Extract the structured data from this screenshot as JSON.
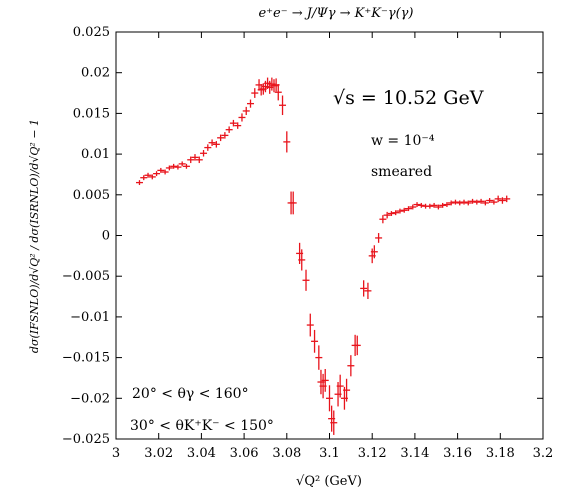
{
  "chart_data": {
    "type": "scatter",
    "title": "e⁺e⁻ → J/Ψγ → K⁺K⁻γ(γ)",
    "xlabel": "√Q² (GeV)",
    "ylabel": "dσ(IFSNLO)/d√Q² / dσ(ISRNLO)/d√Q² − 1",
    "xlim": [
      3.0,
      3.2
    ],
    "ylim": [
      -0.025,
      0.025
    ],
    "x_ticks": [
      "3",
      "3.02",
      "3.04",
      "3.06",
      "3.08",
      "3.1",
      "3.12",
      "3.14",
      "3.16",
      "3.18",
      "3.2"
    ],
    "y_ticks": [
      "0.025",
      "0.02",
      "0.015",
      "0.01",
      "0.005",
      "0",
      "−0.005",
      "−0.01",
      "−0.015",
      "−0.02",
      "−0.025"
    ],
    "annotations": {
      "energy": "√s = 10.52 GeV",
      "weight": "w = 10⁻⁴",
      "smeared": "smeared",
      "theta_gamma": "20° < θγ < 160°",
      "theta_kk": "30° < θK⁺K⁻ < 150°"
    },
    "marker_color": "#e8141c",
    "grid": false,
    "series": [
      {
        "points": [
          [
            3.011,
            0.0065,
            0.0003
          ],
          [
            3.013,
            0.0071,
            0.0003
          ],
          [
            3.015,
            0.0074,
            0.0003
          ],
          [
            3.017,
            0.0072,
            0.0003
          ],
          [
            3.019,
            0.0076,
            0.0003
          ],
          [
            3.021,
            0.008,
            0.0003
          ],
          [
            3.023,
            0.0078,
            0.0003
          ],
          [
            3.025,
            0.0083,
            0.0003
          ],
          [
            3.027,
            0.0085,
            0.0003
          ],
          [
            3.029,
            0.0084,
            0.0003
          ],
          [
            3.031,
            0.0088,
            0.0003
          ],
          [
            3.033,
            0.0085,
            0.0003
          ],
          [
            3.035,
            0.0093,
            0.0004
          ],
          [
            3.037,
            0.0096,
            0.0004
          ],
          [
            3.039,
            0.0093,
            0.0004
          ],
          [
            3.041,
            0.0101,
            0.0004
          ],
          [
            3.043,
            0.0108,
            0.0004
          ],
          [
            3.045,
            0.0114,
            0.0004
          ],
          [
            3.047,
            0.0112,
            0.0004
          ],
          [
            3.049,
            0.012,
            0.0004
          ],
          [
            3.051,
            0.0123,
            0.0004
          ],
          [
            3.053,
            0.013,
            0.0004
          ],
          [
            3.055,
            0.0138,
            0.0004
          ],
          [
            3.057,
            0.0135,
            0.0004
          ],
          [
            3.059,
            0.0145,
            0.0005
          ],
          [
            3.061,
            0.0153,
            0.0005
          ],
          [
            3.063,
            0.0162,
            0.0005
          ],
          [
            3.065,
            0.0175,
            0.0006
          ],
          [
            3.067,
            0.0185,
            0.0007
          ],
          [
            3.068,
            0.0179,
            0.0007
          ],
          [
            3.069,
            0.018,
            0.0007
          ],
          [
            3.07,
            0.0183,
            0.0007
          ],
          [
            3.071,
            0.0187,
            0.0007
          ],
          [
            3.072,
            0.0182,
            0.0008
          ],
          [
            3.073,
            0.0186,
            0.0008
          ],
          [
            3.074,
            0.0184,
            0.0008
          ],
          [
            3.075,
            0.0185,
            0.0008
          ],
          [
            3.076,
            0.0176,
            0.001
          ],
          [
            3.078,
            0.016,
            0.0012
          ],
          [
            3.08,
            0.0115,
            0.0013
          ],
          [
            3.082,
            0.004,
            0.0014
          ],
          [
            3.083,
            0.004,
            0.0014
          ],
          [
            3.086,
            -0.0022,
            0.0013
          ],
          [
            3.087,
            -0.003,
            0.0013
          ],
          [
            3.089,
            -0.0055,
            0.0013
          ],
          [
            3.091,
            -0.011,
            0.0014
          ],
          [
            3.093,
            -0.013,
            0.0014
          ],
          [
            3.095,
            -0.015,
            0.0015
          ],
          [
            3.096,
            -0.018,
            0.0015
          ],
          [
            3.097,
            -0.0185,
            0.0015
          ],
          [
            3.098,
            -0.0178,
            0.0014
          ],
          [
            3.1,
            -0.02,
            0.0016
          ],
          [
            3.101,
            -0.0225,
            0.0016
          ],
          [
            3.102,
            -0.023,
            0.0015
          ],
          [
            3.104,
            -0.0195,
            0.0015
          ],
          [
            3.105,
            -0.0185,
            0.0014
          ],
          [
            3.107,
            -0.02,
            0.0014
          ],
          [
            3.108,
            -0.019,
            0.0014
          ],
          [
            3.11,
            -0.016,
            0.0013
          ],
          [
            3.112,
            -0.0135,
            0.0013
          ],
          [
            3.113,
            -0.0135,
            0.0012
          ],
          [
            3.116,
            -0.0065,
            0.001
          ],
          [
            3.118,
            -0.0068,
            0.001
          ],
          [
            3.12,
            -0.0025,
            0.0009
          ],
          [
            3.121,
            -0.002,
            0.0008
          ],
          [
            3.123,
            -0.0003,
            0.0006
          ],
          [
            3.125,
            0.002,
            0.0005
          ],
          [
            3.127,
            0.0025,
            0.0004
          ],
          [
            3.129,
            0.0027,
            0.0003
          ],
          [
            3.131,
            0.0028,
            0.0003
          ],
          [
            3.133,
            0.003,
            0.0003
          ],
          [
            3.135,
            0.0031,
            0.0003
          ],
          [
            3.137,
            0.0033,
            0.0003
          ],
          [
            3.139,
            0.0035,
            0.0003
          ],
          [
            3.141,
            0.0038,
            0.0003
          ],
          [
            3.143,
            0.0037,
            0.0003
          ],
          [
            3.145,
            0.0036,
            0.0003
          ],
          [
            3.147,
            0.0036,
            0.0003
          ],
          [
            3.149,
            0.0037,
            0.0003
          ],
          [
            3.151,
            0.0035,
            0.0003
          ],
          [
            3.153,
            0.0037,
            0.0003
          ],
          [
            3.155,
            0.0038,
            0.0003
          ],
          [
            3.157,
            0.004,
            0.0003
          ],
          [
            3.159,
            0.0041,
            0.0003
          ],
          [
            3.161,
            0.004,
            0.0003
          ],
          [
            3.163,
            0.0041,
            0.0003
          ],
          [
            3.165,
            0.004,
            0.0003
          ],
          [
            3.167,
            0.0042,
            0.0003
          ],
          [
            3.169,
            0.0041,
            0.0003
          ],
          [
            3.171,
            0.0042,
            0.0003
          ],
          [
            3.173,
            0.004,
            0.0003
          ],
          [
            3.175,
            0.0043,
            0.0003
          ],
          [
            3.177,
            0.0041,
            0.0003
          ],
          [
            3.179,
            0.0045,
            0.0004
          ],
          [
            3.181,
            0.0043,
            0.0004
          ],
          [
            3.183,
            0.0045,
            0.0004
          ]
        ]
      }
    ]
  }
}
